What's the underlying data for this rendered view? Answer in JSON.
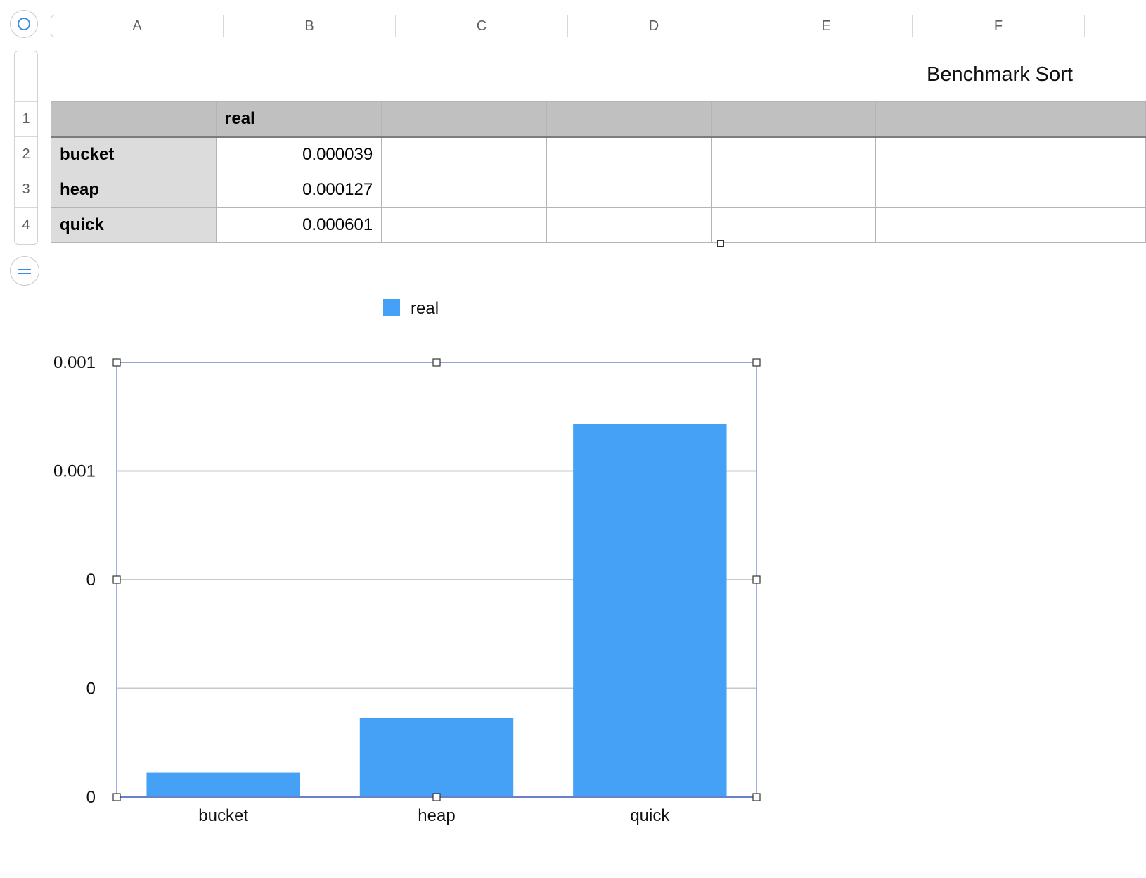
{
  "sheet": {
    "columns": [
      "A",
      "B",
      "C",
      "D",
      "E",
      "F",
      ""
    ],
    "rows": [
      "1",
      "2",
      "3",
      "4"
    ]
  },
  "table": {
    "title": "Benchmark Sort",
    "header": [
      "",
      "real",
      "",
      "",
      "",
      "",
      ""
    ],
    "rows": [
      {
        "label": "bucket",
        "value": "0.000039"
      },
      {
        "label": "heap",
        "value": "0.000127"
      },
      {
        "label": "quick",
        "value": "0.000601"
      }
    ]
  },
  "chart_data": {
    "type": "bar",
    "title": "",
    "xlabel": "",
    "ylabel": "",
    "categories": [
      "bucket",
      "heap",
      "quick"
    ],
    "series": [
      {
        "name": "real",
        "values": [
          3.9e-05,
          0.000127,
          0.000601
        ],
        "color": "#45a1f6"
      }
    ],
    "ylim": [
      0,
      0.0007
    ],
    "y_ticks": [
      0,
      0.000175,
      0.00035,
      0.000525,
      0.0007
    ],
    "y_tick_labels": [
      "0",
      "0",
      "0",
      "0.001",
      "0.001"
    ],
    "grid": true,
    "legend": "top-center",
    "selected": true
  },
  "colors": {
    "bar": "#45a1f6",
    "grid": "#c8c8c8",
    "selection": "#7b98e8",
    "accent": "#3a8ee6",
    "header_fill": "#bfc0bf",
    "row_header_fill": "#dcdcdc"
  }
}
